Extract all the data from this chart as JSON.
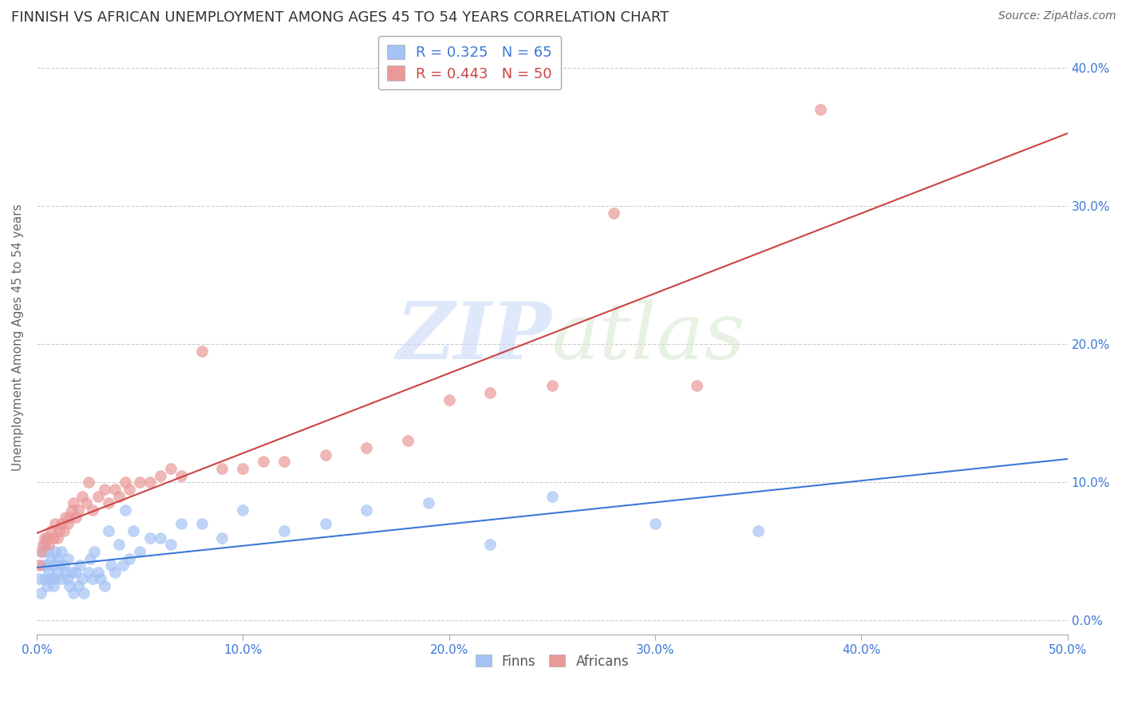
{
  "title": "FINNISH VS AFRICAN UNEMPLOYMENT AMONG AGES 45 TO 54 YEARS CORRELATION CHART",
  "source": "Source: ZipAtlas.com",
  "ylabel": "Unemployment Among Ages 45 to 54 years",
  "xlabel_ticks": [
    "0.0%",
    "10.0%",
    "20.0%",
    "30.0%",
    "40.0%",
    "50.0%"
  ],
  "xlabel_vals": [
    0.0,
    0.1,
    0.2,
    0.3,
    0.4,
    0.5
  ],
  "ylabel_ticks": [
    "0.0%",
    "10.0%",
    "20.0%",
    "30.0%",
    "40.0%"
  ],
  "ylabel_vals": [
    0.0,
    0.1,
    0.2,
    0.3,
    0.4
  ],
  "xlim": [
    0.0,
    0.5
  ],
  "ylim": [
    -0.01,
    0.42
  ],
  "finns_R": 0.325,
  "finns_N": 65,
  "africans_R": 0.443,
  "africans_N": 50,
  "finns_color": "#a4c2f4",
  "africans_color": "#ea9999",
  "trend_finns_color": "#3c78d8",
  "trend_africans_color": "#cc4444",
  "finns_x": [
    0.001,
    0.002,
    0.003,
    0.003,
    0.004,
    0.004,
    0.005,
    0.005,
    0.005,
    0.006,
    0.006,
    0.007,
    0.007,
    0.008,
    0.008,
    0.009,
    0.009,
    0.01,
    0.01,
    0.011,
    0.012,
    0.012,
    0.013,
    0.014,
    0.015,
    0.015,
    0.016,
    0.017,
    0.018,
    0.019,
    0.02,
    0.021,
    0.022,
    0.023,
    0.025,
    0.026,
    0.027,
    0.028,
    0.03,
    0.031,
    0.033,
    0.035,
    0.036,
    0.038,
    0.04,
    0.042,
    0.043,
    0.045,
    0.047,
    0.05,
    0.055,
    0.06,
    0.065,
    0.07,
    0.08,
    0.09,
    0.1,
    0.12,
    0.14,
    0.16,
    0.19,
    0.22,
    0.25,
    0.3,
    0.35
  ],
  "finns_y": [
    0.03,
    0.02,
    0.04,
    0.05,
    0.03,
    0.055,
    0.025,
    0.04,
    0.06,
    0.035,
    0.05,
    0.03,
    0.045,
    0.025,
    0.04,
    0.03,
    0.05,
    0.035,
    0.045,
    0.04,
    0.03,
    0.05,
    0.04,
    0.035,
    0.03,
    0.045,
    0.025,
    0.035,
    0.02,
    0.035,
    0.025,
    0.04,
    0.03,
    0.02,
    0.035,
    0.045,
    0.03,
    0.05,
    0.035,
    0.03,
    0.025,
    0.065,
    0.04,
    0.035,
    0.055,
    0.04,
    0.08,
    0.045,
    0.065,
    0.05,
    0.06,
    0.06,
    0.055,
    0.07,
    0.07,
    0.06,
    0.08,
    0.065,
    0.07,
    0.08,
    0.085,
    0.055,
    0.09,
    0.07,
    0.065
  ],
  "africans_x": [
    0.001,
    0.002,
    0.003,
    0.004,
    0.005,
    0.006,
    0.007,
    0.008,
    0.009,
    0.01,
    0.011,
    0.012,
    0.013,
    0.014,
    0.015,
    0.016,
    0.017,
    0.018,
    0.019,
    0.02,
    0.022,
    0.024,
    0.025,
    0.027,
    0.03,
    0.033,
    0.035,
    0.038,
    0.04,
    0.043,
    0.045,
    0.05,
    0.055,
    0.06,
    0.065,
    0.07,
    0.08,
    0.09,
    0.1,
    0.11,
    0.12,
    0.14,
    0.16,
    0.18,
    0.2,
    0.22,
    0.25,
    0.28,
    0.32,
    0.38
  ],
  "africans_y": [
    0.04,
    0.05,
    0.055,
    0.06,
    0.06,
    0.055,
    0.065,
    0.06,
    0.07,
    0.06,
    0.065,
    0.07,
    0.065,
    0.075,
    0.07,
    0.075,
    0.08,
    0.085,
    0.075,
    0.08,
    0.09,
    0.085,
    0.1,
    0.08,
    0.09,
    0.095,
    0.085,
    0.095,
    0.09,
    0.1,
    0.095,
    0.1,
    0.1,
    0.105,
    0.11,
    0.105,
    0.195,
    0.11,
    0.11,
    0.115,
    0.115,
    0.12,
    0.125,
    0.13,
    0.16,
    0.165,
    0.17,
    0.295,
    0.17,
    0.37
  ],
  "watermark_zip": "ZIP",
  "watermark_atlas": "atlas",
  "legend_finn_label": "Finns",
  "legend_african_label": "Africans",
  "background_color": "#ffffff",
  "grid_color": "#cccccc",
  "right_axis_color": "#3c78d8",
  "title_fontsize": 13,
  "axis_label_fontsize": 11,
  "tick_fontsize": 11,
  "source_fontsize": 10
}
